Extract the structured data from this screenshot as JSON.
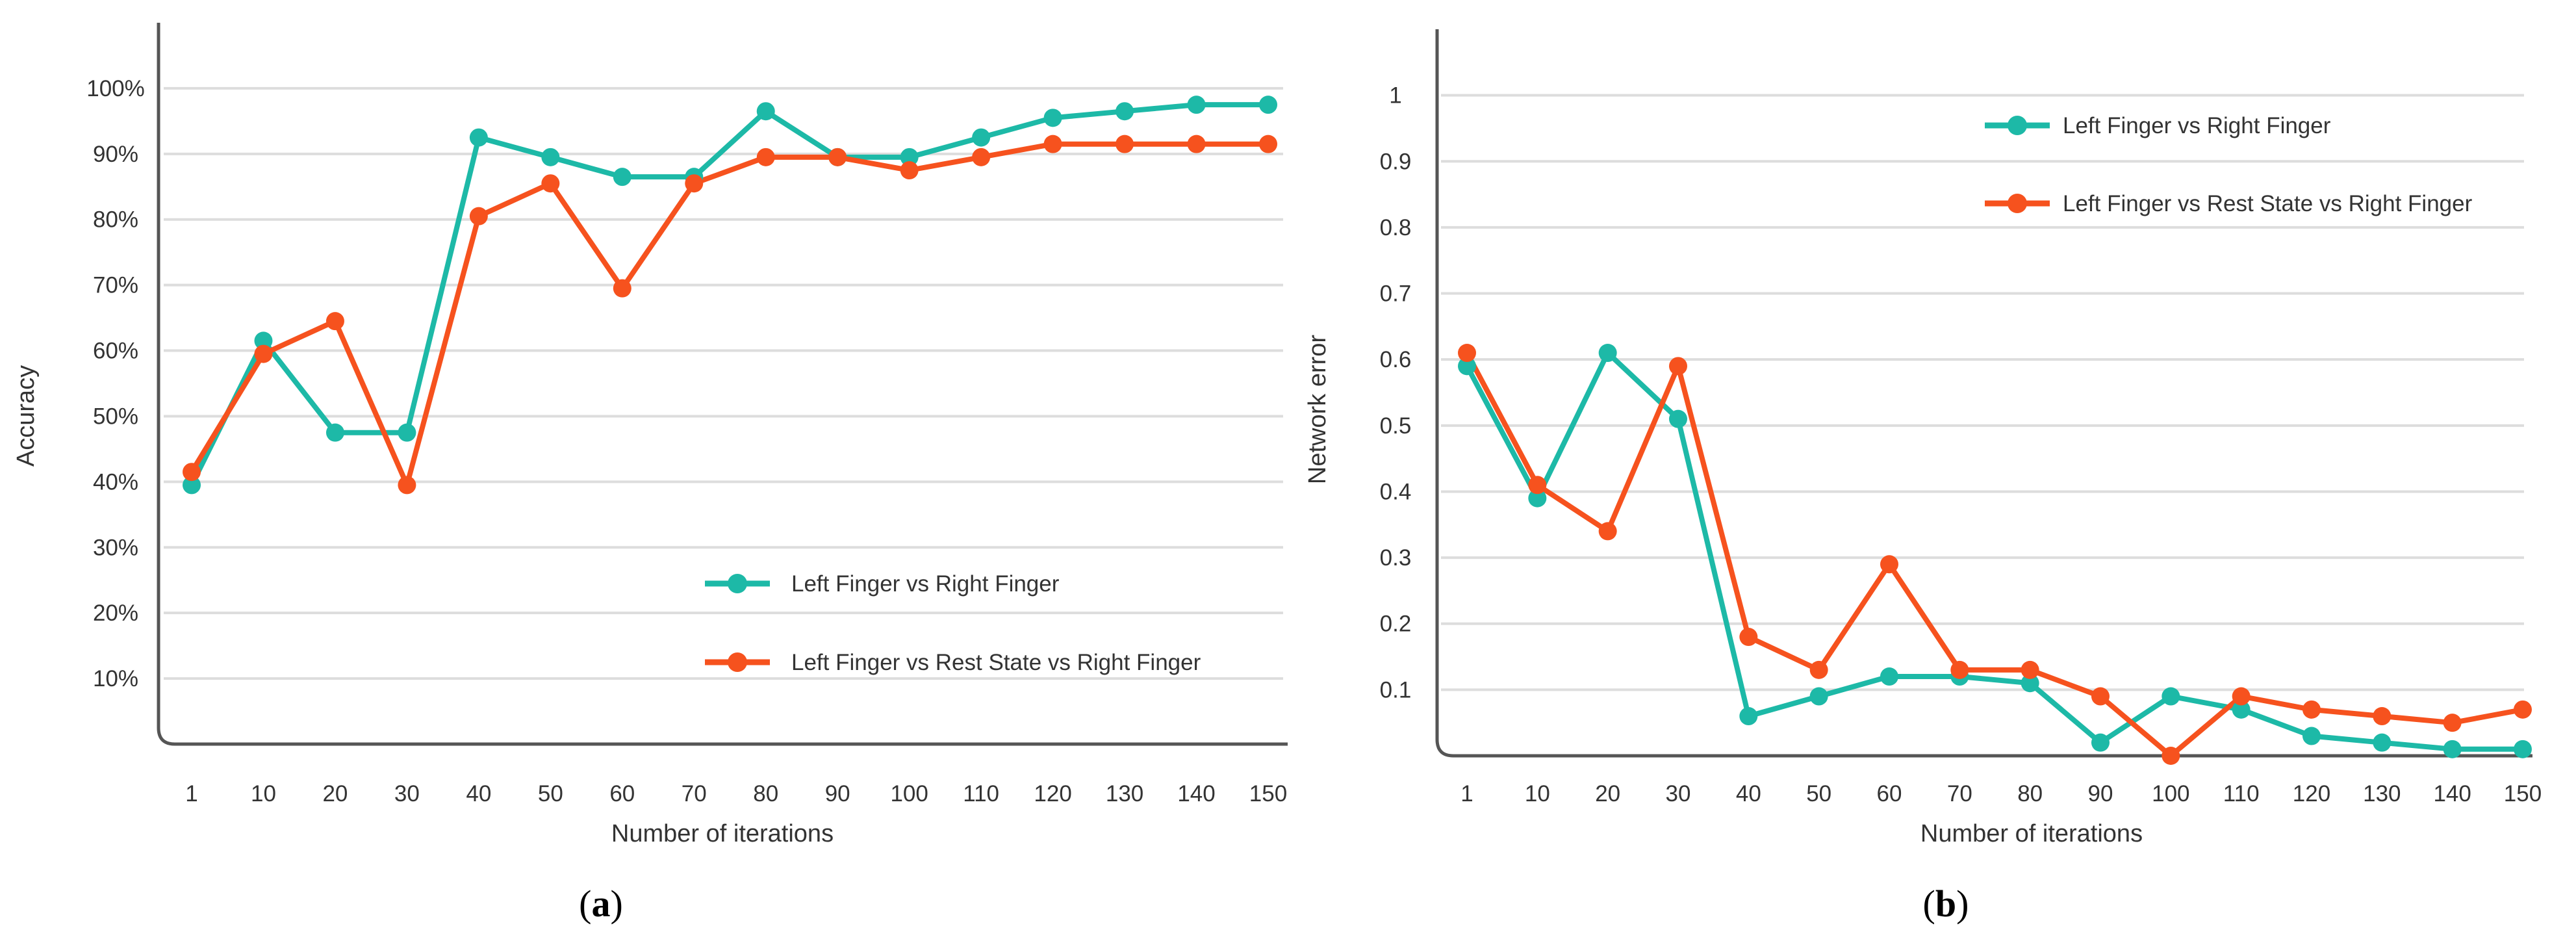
{
  "colors": {
    "series_a": "#1db9a7",
    "series_b": "#f6521e",
    "grid": "#dddddd",
    "axis": "#555555"
  },
  "chart_data": [
    {
      "type": "line",
      "panel": "a",
      "caption_open": "(",
      "caption_letter": "a",
      "caption_close": ")",
      "xlabel": "Number of iterations",
      "ylabel": "Accuracy",
      "categories": [
        "1",
        "10",
        "20",
        "30",
        "40",
        "50",
        "60",
        "70",
        "80",
        "90",
        "100",
        "110",
        "120",
        "130",
        "140",
        "150"
      ],
      "ylim": [
        0,
        110
      ],
      "yticks": [
        10,
        20,
        30,
        40,
        50,
        60,
        70,
        80,
        90,
        100
      ],
      "ytick_labels": [
        "10%",
        "20%",
        "30%",
        "40%",
        "50%",
        "60%",
        "70%",
        "80%",
        "90%",
        "100%"
      ],
      "grid": true,
      "legend_position": "bottom-right",
      "series": [
        {
          "name": "Left Finger vs Right Finger",
          "color_key": "series_a",
          "values": [
            39.5,
            61.5,
            47.5,
            47.5,
            92.5,
            89.5,
            86.5,
            86.5,
            96.5,
            89.5,
            89.5,
            92.5,
            95.5,
            96.5,
            97.5,
            97.5
          ]
        },
        {
          "name": "Left Finger vs Rest State vs Right Finger",
          "color_key": "series_b",
          "values": [
            41.5,
            59.5,
            64.5,
            39.5,
            80.5,
            85.5,
            69.5,
            85.5,
            89.5,
            89.5,
            87.5,
            89.5,
            91.5,
            91.5,
            91.5,
            91.5
          ]
        }
      ]
    },
    {
      "type": "line",
      "panel": "b",
      "caption_open": "(",
      "caption_letter": "b",
      "caption_close": ")",
      "xlabel": "Number of iterations",
      "ylabel": "Network error",
      "categories": [
        "1",
        "10",
        "20",
        "30",
        "40",
        "50",
        "60",
        "70",
        "80",
        "90",
        "100",
        "110",
        "120",
        "130",
        "140",
        "150"
      ],
      "ylim": [
        0,
        1.1
      ],
      "yticks": [
        0.1,
        0.2,
        0.3,
        0.4,
        0.5,
        0.6,
        0.7,
        0.8,
        0.9,
        1
      ],
      "ytick_labels": [
        "0.1",
        "0.2",
        "0.3",
        "0.4",
        "0.5",
        "0.6",
        "0.7",
        "0.8",
        "0.9",
        "1"
      ],
      "grid": true,
      "legend_position": "top-right",
      "series": [
        {
          "name": "Left Finger vs Right Finger",
          "color_key": "series_a",
          "values": [
            0.59,
            0.39,
            0.61,
            0.51,
            0.06,
            0.09,
            0.12,
            0.12,
            0.11,
            0.02,
            0.09,
            0.07,
            0.03,
            0.02,
            0.01,
            0.01
          ]
        },
        {
          "name": "Left Finger vs Rest State vs Right Finger",
          "color_key": "series_b",
          "values": [
            0.61,
            0.41,
            0.34,
            0.59,
            0.18,
            0.13,
            0.29,
            0.13,
            0.13,
            0.09,
            0.0,
            0.09,
            0.07,
            0.06,
            0.05,
            0.07
          ]
        }
      ]
    }
  ]
}
